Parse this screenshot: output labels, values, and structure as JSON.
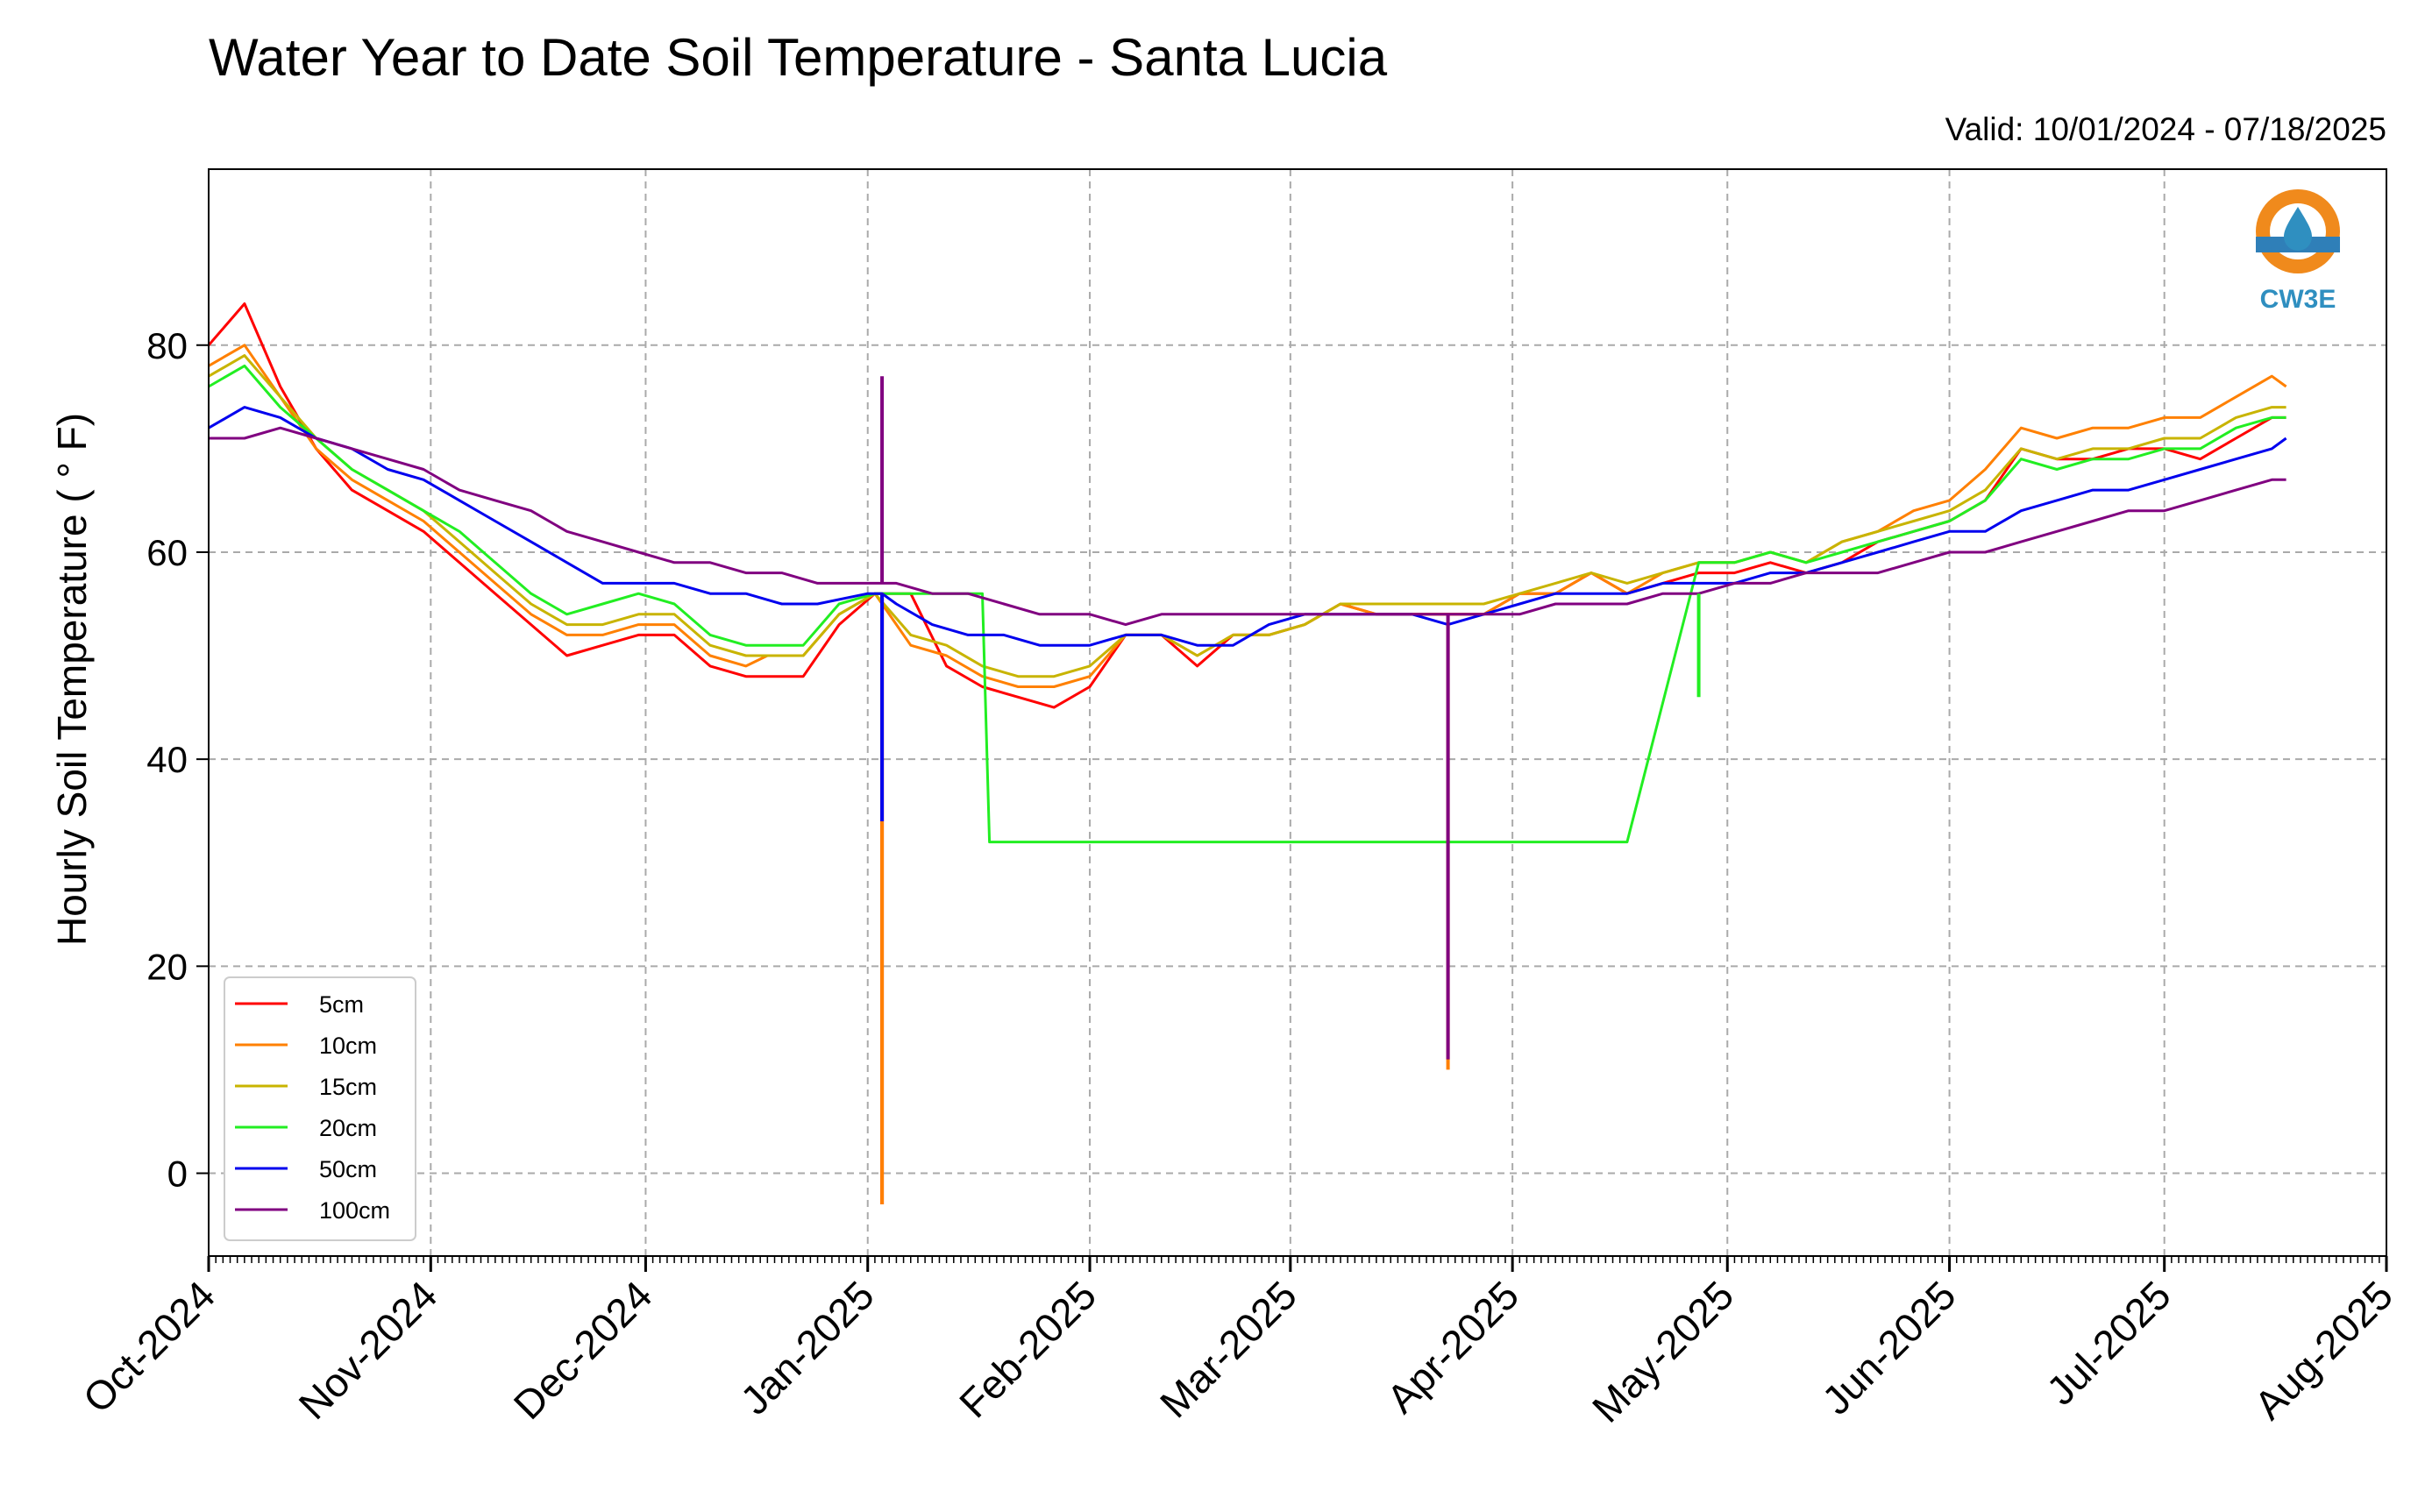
{
  "chart_data": {
    "type": "line",
    "title": "Water Year to Date Soil Temperature - Santa Lucia",
    "subtitle": "Valid: 10/01/2024 - 07/18/2025",
    "ylabel": "Hourly Soil Temperature ( ° F)",
    "xlabel": "",
    "xlim": [
      "2024-10-01",
      "2025-08-01"
    ],
    "ylim": [
      -8,
      97
    ],
    "yticks": [
      0,
      20,
      40,
      60,
      80
    ],
    "xticks": [
      {
        "date": "2024-10-01",
        "label": "Oct-2024"
      },
      {
        "date": "2024-11-01",
        "label": "Nov-2024"
      },
      {
        "date": "2024-12-01",
        "label": "Dec-2024"
      },
      {
        "date": "2025-01-01",
        "label": "Jan-2025"
      },
      {
        "date": "2025-02-01",
        "label": "Feb-2025"
      },
      {
        "date": "2025-03-01",
        "label": "Mar-2025"
      },
      {
        "date": "2025-04-01",
        "label": "Apr-2025"
      },
      {
        "date": "2025-05-01",
        "label": "May-2025"
      },
      {
        "date": "2025-06-01",
        "label": "Jun-2025"
      },
      {
        "date": "2025-07-01",
        "label": "Jul-2025"
      },
      {
        "date": "2025-08-01",
        "label": "Aug-2025"
      }
    ],
    "grid": true,
    "legend_position": "lower-left",
    "logo_text": "CW3E",
    "series": [
      {
        "name": "5cm",
        "color": "#ff0000",
        "x": [
          "2024-10-01",
          "2024-10-06",
          "2024-10-11",
          "2024-10-16",
          "2024-10-21",
          "2024-10-26",
          "2024-10-31",
          "2024-11-05",
          "2024-11-10",
          "2024-11-15",
          "2024-11-20",
          "2024-11-25",
          "2024-11-30",
          "2024-12-05",
          "2024-12-10",
          "2024-12-15",
          "2024-12-18",
          "2024-12-23",
          "2024-12-28",
          "2025-01-02",
          "2025-01-07",
          "2025-01-12",
          "2025-01-17",
          "2025-01-22",
          "2025-01-27",
          "2025-02-01",
          "2025-02-06",
          "2025-02-11",
          "2025-02-16",
          "2025-02-21",
          "2025-02-26",
          "2025-03-03",
          "2025-03-08",
          "2025-03-13",
          "2025-03-18",
          "2025-03-23",
          "2025-03-28",
          "2025-04-02",
          "2025-04-07",
          "2025-04-12",
          "2025-04-17",
          "2025-04-22",
          "2025-04-27",
          "2025-05-02",
          "2025-05-07",
          "2025-05-12",
          "2025-05-17",
          "2025-05-22",
          "2025-05-27",
          "2025-06-01",
          "2025-06-06",
          "2025-06-11",
          "2025-06-16",
          "2025-06-21",
          "2025-06-26",
          "2025-07-01",
          "2025-07-06",
          "2025-07-11",
          "2025-07-16",
          "2025-07-18"
        ],
        "y": [
          80,
          84,
          76,
          70,
          66,
          64,
          62,
          59,
          56,
          53,
          50,
          51,
          52,
          52,
          49,
          48,
          48,
          48,
          53,
          56,
          56,
          49,
          47,
          46,
          45,
          47,
          52,
          52,
          49,
          52,
          52,
          53,
          55,
          54,
          54,
          54,
          54,
          56,
          56,
          58,
          56,
          57,
          58,
          58,
          59,
          58,
          59,
          61,
          62,
          63,
          65,
          70,
          69,
          69,
          70,
          70,
          69,
          71,
          73,
          73
        ]
      },
      {
        "name": "10cm",
        "color": "#ff8000",
        "x": [
          "2024-10-01",
          "2024-10-06",
          "2024-10-11",
          "2024-10-16",
          "2024-10-21",
          "2024-10-26",
          "2024-10-31",
          "2024-11-05",
          "2024-11-10",
          "2024-11-15",
          "2024-11-20",
          "2024-11-25",
          "2024-11-30",
          "2024-12-05",
          "2024-12-10",
          "2024-12-15",
          "2024-12-18",
          "2024-12-23",
          "2024-12-28",
          "2025-01-02",
          "2025-01-07",
          "2025-01-12",
          "2025-01-17",
          "2025-01-22",
          "2025-01-27",
          "2025-02-01",
          "2025-02-06",
          "2025-02-11",
          "2025-02-16",
          "2025-02-21",
          "2025-02-26",
          "2025-03-03",
          "2025-03-08",
          "2025-03-13",
          "2025-03-18",
          "2025-03-23",
          "2025-03-28",
          "2025-04-02",
          "2025-04-07",
          "2025-04-12",
          "2025-04-17",
          "2025-04-22",
          "2025-04-27",
          "2025-05-02",
          "2025-05-07",
          "2025-05-12",
          "2025-05-17",
          "2025-05-22",
          "2025-05-27",
          "2025-06-01",
          "2025-06-06",
          "2025-06-11",
          "2025-06-16",
          "2025-06-21",
          "2025-06-26",
          "2025-07-01",
          "2025-07-06",
          "2025-07-11",
          "2025-07-16",
          "2025-07-18"
        ],
        "y": [
          78,
          80,
          75,
          70,
          67,
          65,
          63,
          60,
          57,
          54,
          52,
          52,
          53,
          53,
          50,
          49,
          50,
          50,
          54,
          56,
          51,
          50,
          48,
          47,
          47,
          48,
          52,
          52,
          50,
          52,
          52,
          53,
          55,
          54,
          54,
          54,
          54,
          56,
          56,
          58,
          56,
          58,
          59,
          59,
          60,
          59,
          61,
          62,
          64,
          65,
          68,
          72,
          71,
          72,
          72,
          73,
          73,
          75,
          77,
          76
        ]
      },
      {
        "name": "15cm",
        "color": "#c8b400",
        "x": [
          "2024-10-01",
          "2024-10-06",
          "2024-10-11",
          "2024-10-16",
          "2024-10-21",
          "2024-10-26",
          "2024-10-31",
          "2024-11-05",
          "2024-11-10",
          "2024-11-15",
          "2024-11-20",
          "2024-11-25",
          "2024-11-30",
          "2024-12-05",
          "2024-12-10",
          "2024-12-15",
          "2024-12-18",
          "2024-12-23",
          "2024-12-28",
          "2025-01-02",
          "2025-01-07",
          "2025-01-12",
          "2025-01-17",
          "2025-01-22",
          "2025-01-27",
          "2025-02-01",
          "2025-02-06",
          "2025-02-11",
          "2025-02-16",
          "2025-02-21",
          "2025-02-26",
          "2025-03-03",
          "2025-03-08",
          "2025-03-13",
          "2025-03-18",
          "2025-03-23",
          "2025-03-28",
          "2025-04-02",
          "2025-04-07",
          "2025-04-12",
          "2025-04-17",
          "2025-04-22",
          "2025-04-27",
          "2025-05-02",
          "2025-05-07",
          "2025-05-12",
          "2025-05-17",
          "2025-05-22",
          "2025-05-27",
          "2025-06-01",
          "2025-06-06",
          "2025-06-11",
          "2025-06-16",
          "2025-06-21",
          "2025-06-26",
          "2025-07-01",
          "2025-07-06",
          "2025-07-11",
          "2025-07-16",
          "2025-07-18"
        ],
        "y": [
          77,
          79,
          75,
          71,
          68,
          66,
          64,
          61,
          58,
          55,
          53,
          53,
          54,
          54,
          51,
          50,
          50,
          50,
          54,
          56,
          52,
          51,
          49,
          48,
          48,
          49,
          52,
          52,
          50,
          52,
          52,
          53,
          55,
          55,
          55,
          55,
          55,
          56,
          57,
          58,
          57,
          58,
          59,
          59,
          60,
          59,
          61,
          62,
          63,
          64,
          66,
          70,
          69,
          70,
          70,
          71,
          71,
          73,
          74,
          74
        ]
      },
      {
        "name": "20cm",
        "color": "#22ee22",
        "x": [
          "2024-10-01",
          "2024-10-06",
          "2024-10-11",
          "2024-10-16",
          "2024-10-21",
          "2024-10-26",
          "2024-10-31",
          "2024-11-05",
          "2024-11-10",
          "2024-11-15",
          "2024-11-20",
          "2024-11-25",
          "2024-11-30",
          "2024-12-05",
          "2024-12-10",
          "2024-12-15",
          "2024-12-18",
          "2024-12-23",
          "2024-12-28",
          "2025-01-02",
          "2025-01-07",
          "2025-01-12",
          "2025-01-17",
          "2025-01-18",
          "2025-02-01",
          "2025-03-01",
          "2025-04-01",
          "2025-04-17",
          "2025-04-27",
          "2025-05-02",
          "2025-05-07",
          "2025-05-12",
          "2025-05-17",
          "2025-05-22",
          "2025-05-27",
          "2025-06-01",
          "2025-06-06",
          "2025-06-11",
          "2025-06-16",
          "2025-06-21",
          "2025-06-26",
          "2025-07-01",
          "2025-07-06",
          "2025-07-11",
          "2025-07-16",
          "2025-07-18"
        ],
        "y": [
          76,
          78,
          74,
          71,
          68,
          66,
          64,
          62,
          59,
          56,
          54,
          55,
          56,
          55,
          52,
          51,
          51,
          51,
          55,
          56,
          56,
          56,
          56,
          32,
          32,
          32,
          32,
          32,
          59,
          59,
          60,
          59,
          60,
          61,
          62,
          63,
          65,
          69,
          68,
          69,
          69,
          70,
          70,
          72,
          73,
          73
        ]
      },
      {
        "name": "50cm",
        "color": "#0000ee",
        "x": [
          "2024-10-01",
          "2024-10-06",
          "2024-10-11",
          "2024-10-16",
          "2024-10-21",
          "2024-10-26",
          "2024-10-31",
          "2024-11-05",
          "2024-11-10",
          "2024-11-15",
          "2024-11-20",
          "2024-11-25",
          "2024-11-30",
          "2024-12-05",
          "2024-12-10",
          "2024-12-15",
          "2024-12-20",
          "2024-12-25",
          "2025-01-01",
          "2025-01-03",
          "2025-01-05",
          "2025-01-10",
          "2025-01-15",
          "2025-01-20",
          "2025-01-25",
          "2025-02-01",
          "2025-02-06",
          "2025-02-11",
          "2025-02-16",
          "2025-02-21",
          "2025-02-26",
          "2025-03-03",
          "2025-03-08",
          "2025-03-13",
          "2025-03-18",
          "2025-03-23",
          "2025-03-28",
          "2025-04-02",
          "2025-04-07",
          "2025-04-12",
          "2025-04-17",
          "2025-04-22",
          "2025-04-27",
          "2025-05-02",
          "2025-05-07",
          "2025-05-12",
          "2025-05-17",
          "2025-05-22",
          "2025-05-27",
          "2025-06-01",
          "2025-06-06",
          "2025-06-11",
          "2025-06-16",
          "2025-06-21",
          "2025-06-26",
          "2025-07-01",
          "2025-07-06",
          "2025-07-11",
          "2025-07-16",
          "2025-07-18"
        ],
        "y": [
          72,
          74,
          73,
          71,
          70,
          68,
          67,
          65,
          63,
          61,
          59,
          57,
          57,
          57,
          56,
          56,
          55,
          55,
          56,
          56,
          55,
          53,
          52,
          52,
          51,
          51,
          52,
          52,
          51,
          51,
          53,
          54,
          54,
          54,
          54,
          53,
          54,
          55,
          56,
          56,
          56,
          57,
          57,
          57,
          58,
          58,
          59,
          60,
          61,
          62,
          62,
          64,
          65,
          66,
          66,
          67,
          68,
          69,
          70,
          71
        ]
      },
      {
        "name": "100cm",
        "color": "#800080",
        "x": [
          "2024-10-01",
          "2024-10-06",
          "2024-10-11",
          "2024-10-16",
          "2024-10-21",
          "2024-10-26",
          "2024-10-31",
          "2024-11-05",
          "2024-11-10",
          "2024-11-15",
          "2024-11-20",
          "2024-11-25",
          "2024-11-30",
          "2024-12-05",
          "2024-12-10",
          "2024-12-15",
          "2024-12-20",
          "2024-12-25",
          "2025-01-01",
          "2025-01-03",
          "2025-01-05",
          "2025-01-10",
          "2025-01-15",
          "2025-01-20",
          "2025-01-25",
          "2025-02-01",
          "2025-02-06",
          "2025-02-11",
          "2025-02-16",
          "2025-02-21",
          "2025-02-26",
          "2025-03-03",
          "2025-03-08",
          "2025-03-13",
          "2025-03-18",
          "2025-03-23",
          "2025-03-28",
          "2025-04-02",
          "2025-04-07",
          "2025-04-12",
          "2025-04-17",
          "2025-04-22",
          "2025-04-27",
          "2025-05-02",
          "2025-05-07",
          "2025-05-12",
          "2025-05-17",
          "2025-05-22",
          "2025-05-27",
          "2025-06-01",
          "2025-06-06",
          "2025-06-11",
          "2025-06-16",
          "2025-06-21",
          "2025-06-26",
          "2025-07-01",
          "2025-07-06",
          "2025-07-11",
          "2025-07-16",
          "2025-07-18"
        ],
        "y": [
          71,
          71,
          72,
          71,
          70,
          69,
          68,
          66,
          65,
          64,
          62,
          61,
          60,
          59,
          59,
          58,
          58,
          57,
          57,
          57,
          57,
          56,
          56,
          55,
          54,
          54,
          53,
          54,
          54,
          54,
          54,
          54,
          54,
          54,
          54,
          54,
          54,
          54,
          55,
          55,
          55,
          56,
          56,
          57,
          57,
          58,
          58,
          58,
          59,
          60,
          60,
          61,
          62,
          63,
          64,
          64,
          65,
          66,
          67,
          67
        ]
      }
    ],
    "spikes": [
      {
        "series": "5cm",
        "date": "2025-01-03",
        "low": -3,
        "high": 56
      },
      {
        "series": "10cm",
        "date": "2025-01-03",
        "low": -3,
        "high": 56
      },
      {
        "series": "50cm",
        "date": "2025-01-03",
        "low": 34,
        "high": 56
      },
      {
        "series": "100cm",
        "date": "2025-01-03",
        "low": 57,
        "high": 77
      },
      {
        "series": "10cm",
        "date": "2025-03-23",
        "low": 10,
        "high": 53
      },
      {
        "series": "100cm",
        "date": "2025-03-23",
        "low": 11,
        "high": 54
      },
      {
        "series": "20cm",
        "date": "2025-04-27",
        "low": 46,
        "high": 56
      }
    ]
  }
}
